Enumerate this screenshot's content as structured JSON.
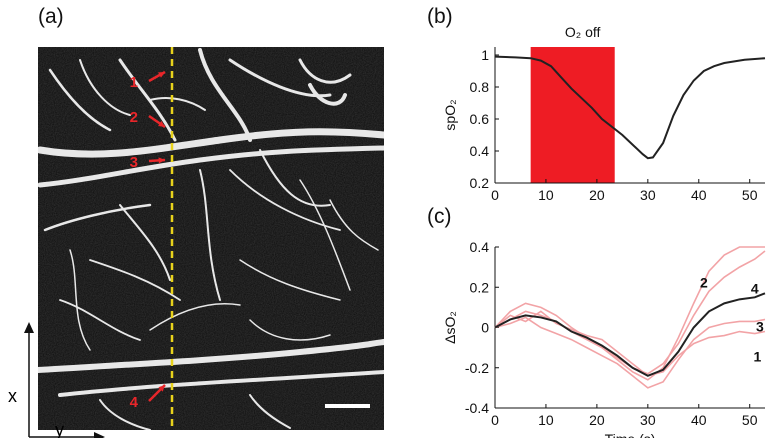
{
  "panels": {
    "a": {
      "label": "(a)",
      "x_axis_label": "x",
      "y_axis_label": "y",
      "markers": [
        "1",
        "2",
        "3",
        "4"
      ],
      "colors": {
        "marker": "#e8262a",
        "line": "#e8d21c",
        "scalebar": "#ffffff"
      }
    },
    "b": {
      "label": "(b)",
      "annotation": "O₂ off"
    },
    "c": {
      "label": "(c)"
    }
  },
  "chart_data": [
    {
      "type": "line",
      "panel": "b",
      "title": "",
      "xlabel": "",
      "ylabel": "spO₂",
      "xlim": [
        0,
        53
      ],
      "ylim": [
        0.2,
        1.05
      ],
      "xticks": [
        0,
        10,
        20,
        30,
        40,
        50
      ],
      "yticks": [
        0.2,
        0.4,
        0.6,
        0.8,
        1
      ],
      "ytick_labels": [
        "0.2",
        "0.4",
        "0.6",
        "0.8",
        "1"
      ],
      "shaded_region": {
        "x": [
          7,
          23.5
        ],
        "label": "O₂ off",
        "color": "#ee1c24"
      },
      "series": [
        {
          "color": "#222222",
          "x": [
            0,
            4,
            7,
            9,
            11,
            13,
            15,
            17,
            19,
            21,
            23,
            25,
            27,
            29,
            30,
            31,
            33,
            35,
            37,
            39,
            41,
            43,
            45,
            47,
            49,
            51,
            53
          ],
          "y": [
            0.99,
            0.985,
            0.98,
            0.965,
            0.93,
            0.86,
            0.79,
            0.73,
            0.67,
            0.6,
            0.55,
            0.5,
            0.44,
            0.38,
            0.355,
            0.36,
            0.45,
            0.62,
            0.75,
            0.84,
            0.9,
            0.93,
            0.95,
            0.96,
            0.97,
            0.975,
            0.98
          ]
        }
      ]
    },
    {
      "type": "line",
      "panel": "c",
      "title": "",
      "xlabel": "Time (s)",
      "ylabel": "ΔsO₂",
      "xlim": [
        0,
        53
      ],
      "ylim": [
        -0.4,
        0.4
      ],
      "xticks": [
        0,
        10,
        20,
        30,
        40,
        50
      ],
      "yticks": [
        -0.4,
        -0.2,
        0,
        0.2,
        0.4
      ],
      "ytick_labels": [
        "-0.4",
        "-0.2",
        "0",
        "0.2",
        "0.4"
      ],
      "series": [
        {
          "name": "1",
          "color": "#f2a3a6",
          "label_color": "#f09a6a",
          "x": [
            0,
            3,
            6,
            9,
            12,
            15,
            18,
            21,
            24,
            27,
            30,
            33,
            36,
            39,
            42,
            45,
            48,
            51,
            53
          ],
          "y": [
            0.0,
            0.06,
            0.03,
            0.08,
            0.02,
            -0.01,
            -0.04,
            -0.06,
            -0.12,
            -0.18,
            -0.24,
            -0.22,
            -0.14,
            -0.08,
            -0.05,
            -0.04,
            -0.02,
            -0.03,
            -0.02
          ]
        },
        {
          "name": "2",
          "color": "#f2a3a6",
          "label_color": "#f09a6a",
          "x": [
            0,
            3,
            6,
            9,
            12,
            15,
            18,
            21,
            24,
            27,
            30,
            33,
            36,
            39,
            42,
            45,
            48,
            51,
            53
          ],
          "y": [
            0.0,
            0.08,
            0.12,
            0.1,
            0.06,
            0.0,
            -0.05,
            -0.1,
            -0.16,
            -0.22,
            -0.26,
            -0.2,
            -0.05,
            0.12,
            0.28,
            0.36,
            0.4,
            0.42,
            0.42
          ]
        },
        {
          "name": "3",
          "color": "#f2a3a6",
          "label_color": "#f09a6a",
          "x": [
            0,
            3,
            6,
            9,
            12,
            15,
            18,
            21,
            24,
            27,
            30,
            33,
            36,
            39,
            42,
            45,
            48,
            51,
            53
          ],
          "y": [
            0.0,
            0.02,
            0.05,
            0.0,
            -0.03,
            -0.06,
            -0.1,
            -0.14,
            -0.18,
            -0.24,
            -0.3,
            -0.27,
            -0.16,
            -0.06,
            0.0,
            0.02,
            0.03,
            0.03,
            0.04
          ]
        },
        {
          "name": "4",
          "color": "#f2a3a6",
          "label_color": "#f09a6a",
          "x": [
            0,
            3,
            6,
            9,
            12,
            15,
            18,
            21,
            24,
            27,
            30,
            33,
            36,
            39,
            42,
            45,
            48,
            51,
            53
          ],
          "y": [
            0.0,
            0.04,
            0.08,
            0.06,
            0.03,
            -0.02,
            -0.06,
            -0.1,
            -0.15,
            -0.2,
            -0.23,
            -0.18,
            -0.08,
            0.06,
            0.18,
            0.25,
            0.3,
            0.34,
            0.38
          ]
        },
        {
          "color": "#222222",
          "mean": true,
          "x": [
            0,
            3,
            6,
            9,
            12,
            15,
            18,
            21,
            24,
            27,
            30,
            33,
            36,
            39,
            42,
            45,
            48,
            51,
            53
          ],
          "y": [
            0.0,
            0.04,
            0.06,
            0.05,
            0.03,
            -0.02,
            -0.05,
            -0.09,
            -0.14,
            -0.2,
            -0.24,
            -0.21,
            -0.12,
            0.0,
            0.08,
            0.12,
            0.14,
            0.15,
            0.17
          ]
        }
      ]
    }
  ]
}
